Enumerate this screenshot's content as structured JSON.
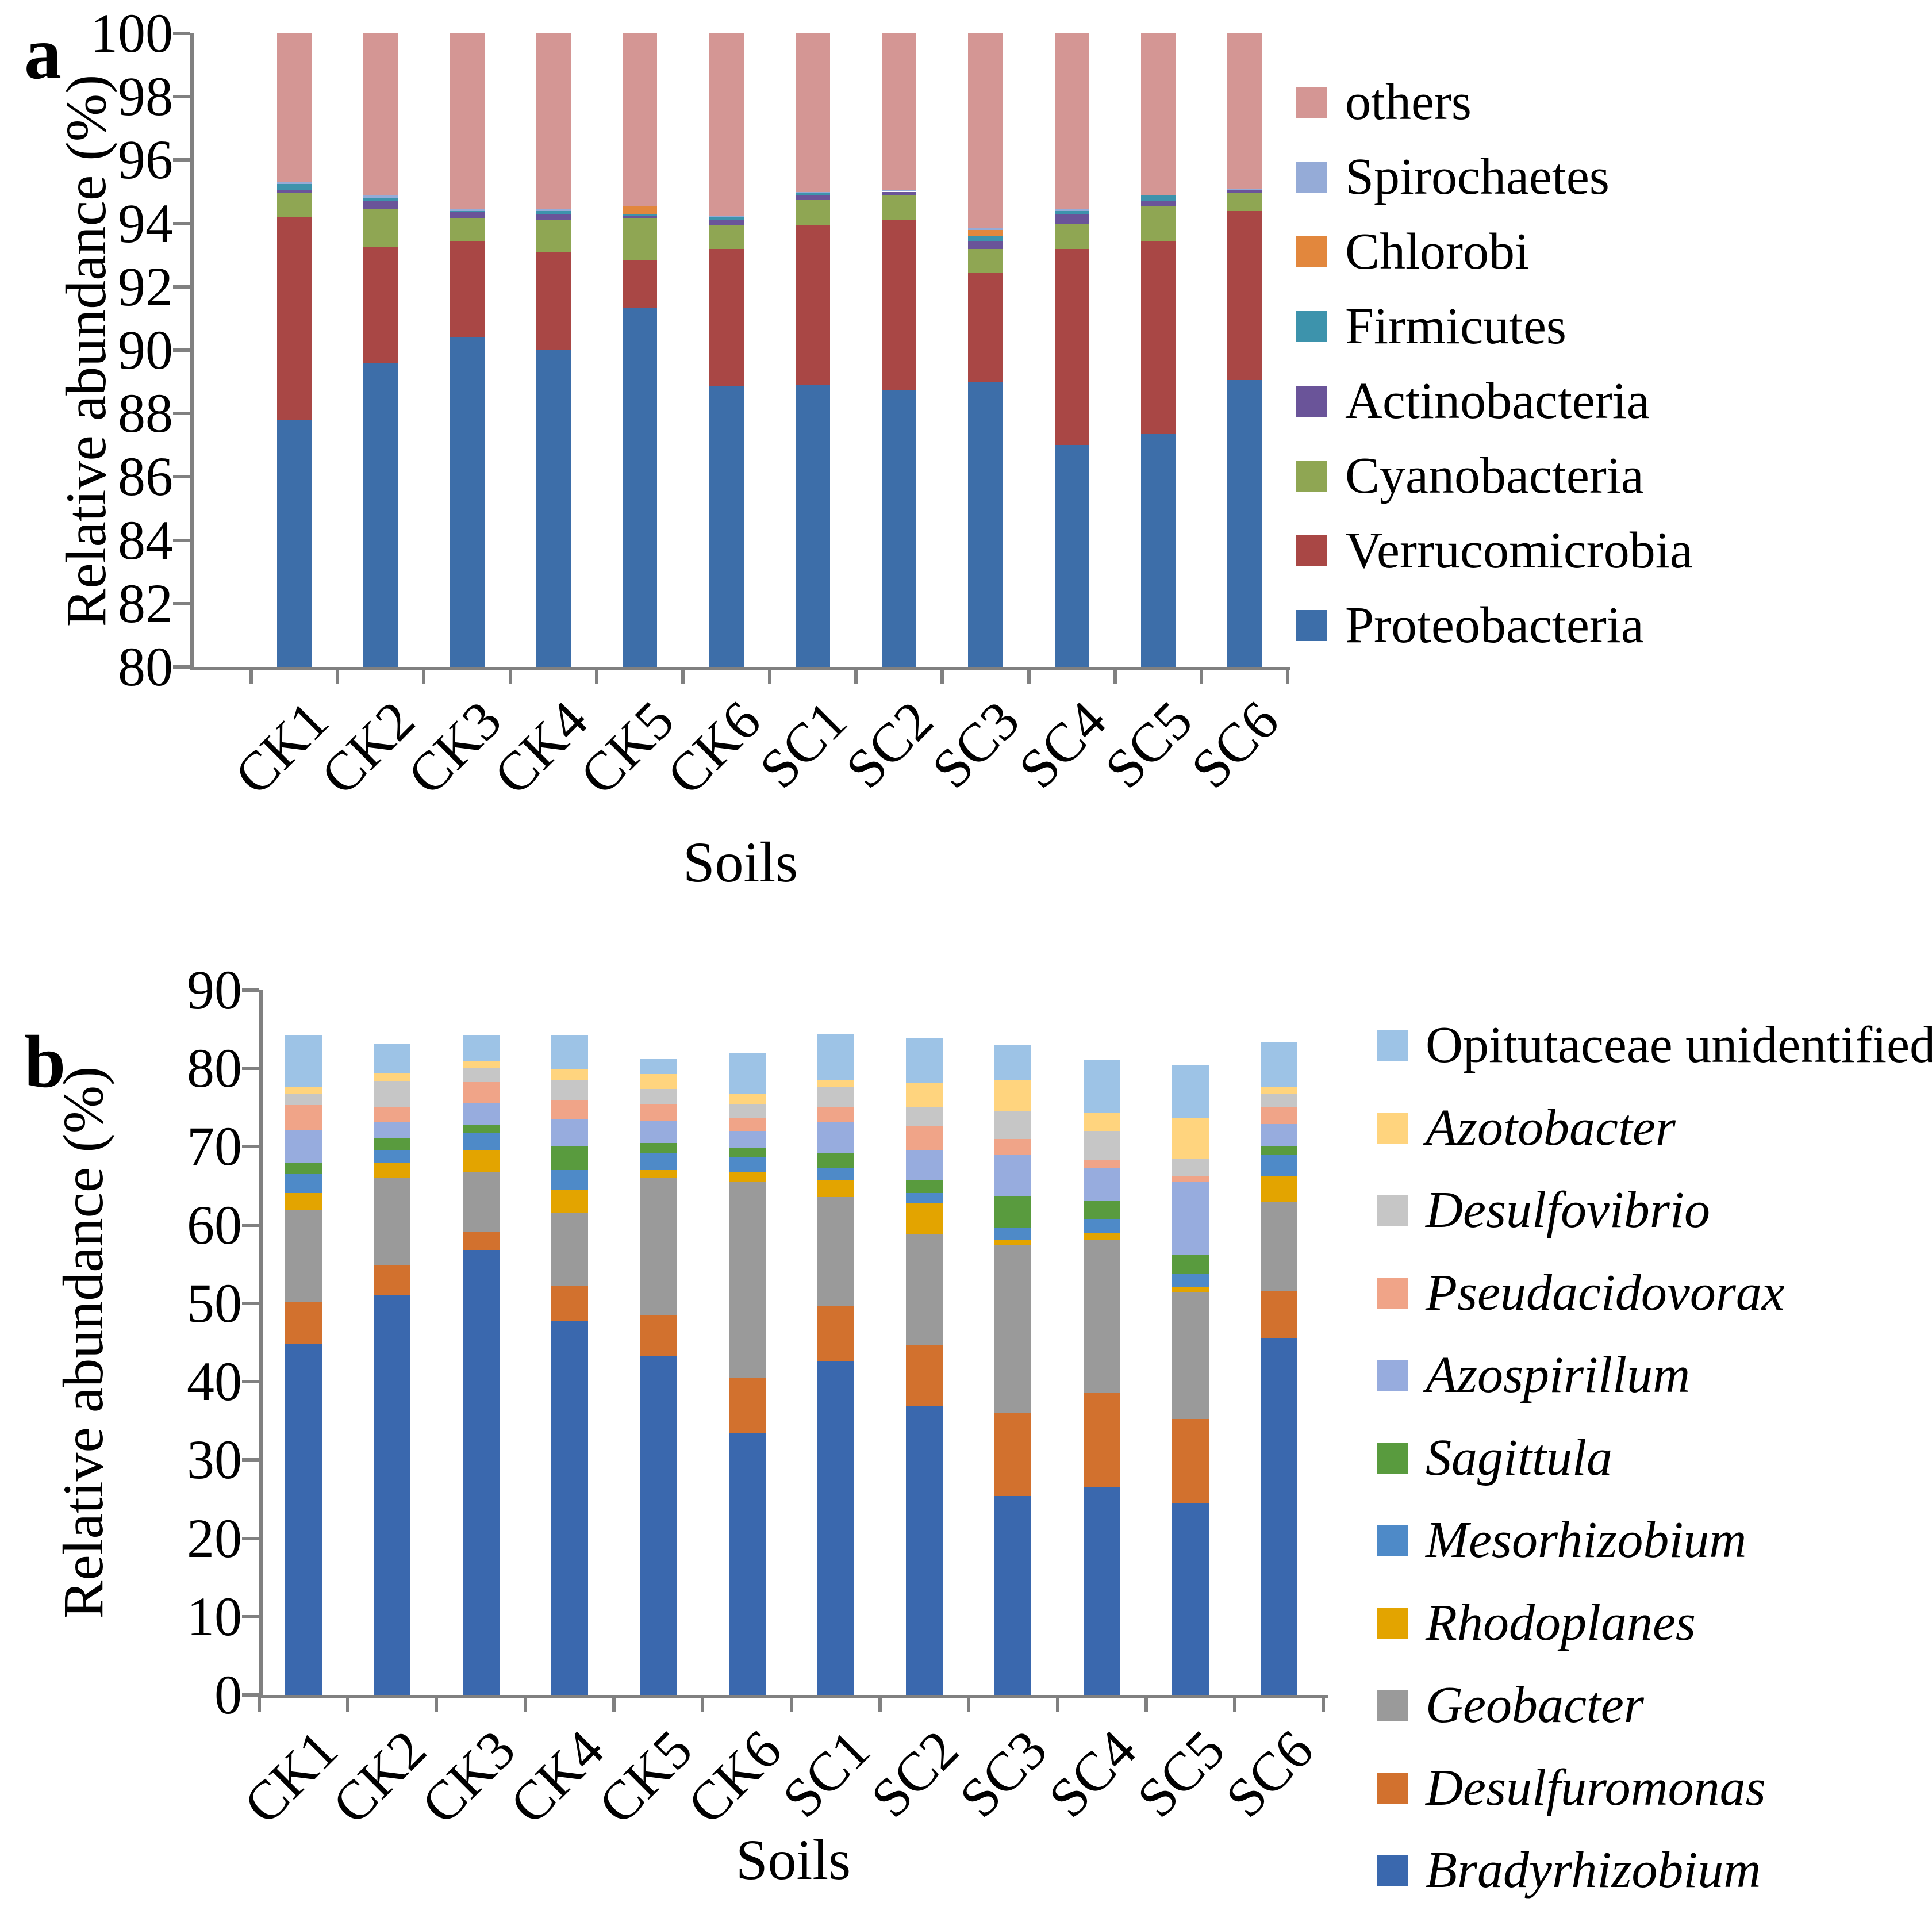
{
  "figure_labels": {
    "panel_a": "a",
    "panel_b": "b"
  },
  "chart_data": [
    {
      "panel": "a",
      "type": "bar",
      "stacked": true,
      "title": "",
      "xlabel": "Soils",
      "ylabel": "Relative abundance (%)",
      "ylim": [
        80,
        100
      ],
      "ytick_step": 2,
      "grid": false,
      "legend_position": "right",
      "categories": [
        "CK1",
        "CK2",
        "CK3",
        "CK4",
        "CK5",
        "CK6",
        "SC1",
        "SC2",
        "SC3",
        "SC4",
        "SC5",
        "SC6"
      ],
      "series": [
        {
          "name": "Proteobacteria",
          "color": "#3D6EA9",
          "italic": false,
          "values": [
            87.8,
            89.6,
            90.4,
            90.0,
            91.35,
            88.85,
            88.9,
            88.75,
            89.0,
            87.0,
            87.35,
            89.05
          ]
        },
        {
          "name": "Verrucomicrobia",
          "color": "#A94745",
          "italic": false,
          "values": [
            6.4,
            3.65,
            3.05,
            3.1,
            1.5,
            4.35,
            5.05,
            5.35,
            3.45,
            6.2,
            6.1,
            5.35
          ]
        },
        {
          "name": "Cyanobacteria",
          "color": "#8FA653",
          "italic": false,
          "values": [
            0.75,
            1.2,
            0.7,
            1.0,
            1.3,
            0.75,
            0.8,
            0.8,
            0.75,
            0.8,
            1.1,
            0.55
          ]
        },
        {
          "name": "Actinobacteria",
          "color": "#6A5499",
          "italic": false,
          "values": [
            0.1,
            0.25,
            0.2,
            0.2,
            0.1,
            0.15,
            0.15,
            0.1,
            0.25,
            0.3,
            0.15,
            0.1
          ]
        },
        {
          "name": "Firmicutes",
          "color": "#3D93AC",
          "italic": false,
          "values": [
            0.2,
            0.1,
            0.05,
            0.1,
            0.05,
            0.1,
            0.05,
            0.0,
            0.15,
            0.1,
            0.2,
            0.0
          ]
        },
        {
          "name": "Chlorobi",
          "color": "#E2873D",
          "italic": false,
          "values": [
            0.0,
            0.0,
            0.0,
            0.0,
            0.25,
            0.0,
            0.0,
            0.0,
            0.2,
            0.0,
            0.0,
            0.0
          ]
        },
        {
          "name": "Spirochaetes",
          "color": "#95ABD7",
          "italic": false,
          "values": [
            0.05,
            0.1,
            0.05,
            0.05,
            0.0,
            0.05,
            0.05,
            0.05,
            0.05,
            0.05,
            0.0,
            0.05
          ]
        },
        {
          "name": "others",
          "color": "#D49694",
          "italic": false,
          "values": [
            4.7,
            5.1,
            5.55,
            5.55,
            5.45,
            5.75,
            5.0,
            4.95,
            6.15,
            5.55,
            5.1,
            4.9
          ]
        }
      ]
    },
    {
      "panel": "b",
      "type": "bar",
      "stacked": true,
      "title": "",
      "xlabel": "Soils",
      "ylabel": "Relative abundance (%)",
      "ylim": [
        0,
        90
      ],
      "ytick_step": 10,
      "grid": false,
      "legend_position": "right",
      "categories": [
        "CK1",
        "CK2",
        "CK3",
        "CK4",
        "CK5",
        "CK6",
        "SC1",
        "SC2",
        "SC3",
        "SC4",
        "SC5",
        "SC6"
      ],
      "series": [
        {
          "name": "Bradyrhizobium",
          "color": "#3A68AE",
          "italic": true,
          "values": [
            44.8,
            51.0,
            56.8,
            47.7,
            43.3,
            33.5,
            42.6,
            36.9,
            25.4,
            26.5,
            24.5,
            45.5
          ]
        },
        {
          "name": "Desulfuromonas",
          "color": "#D2712E",
          "italic": true,
          "values": [
            5.4,
            3.9,
            2.3,
            4.6,
            5.2,
            7.0,
            7.1,
            7.7,
            10.6,
            12.1,
            10.7,
            6.1
          ]
        },
        {
          "name": "Geobacter",
          "color": "#9A9A9A",
          "italic": true,
          "values": [
            11.7,
            11.2,
            7.65,
            9.2,
            17.6,
            25.0,
            13.9,
            14.2,
            21.4,
            19.5,
            16.2,
            11.3
          ]
        },
        {
          "name": "Rhodoplanes",
          "color": "#E3A400",
          "italic": true,
          "values": [
            2.2,
            1.8,
            2.75,
            3.0,
            0.9,
            1.2,
            2.1,
            4.0,
            0.7,
            0.9,
            0.75,
            3.4
          ]
        },
        {
          "name": "Mesorhizobium",
          "color": "#4E8AC8",
          "italic": true,
          "values": [
            2.4,
            1.6,
            2.25,
            2.5,
            2.25,
            2.0,
            1.6,
            1.3,
            1.6,
            1.7,
            1.6,
            2.6
          ]
        },
        {
          "name": "Sagittula",
          "color": "#599B3E",
          "italic": true,
          "values": [
            1.4,
            1.6,
            1.0,
            3.1,
            1.25,
            1.1,
            1.95,
            1.7,
            4.05,
            2.4,
            2.5,
            1.1
          ]
        },
        {
          "name": "Azospirillum",
          "color": "#97ACDE",
          "italic": true,
          "values": [
            4.2,
            2.1,
            2.85,
            3.4,
            2.75,
            2.2,
            3.95,
            3.8,
            5.15,
            4.2,
            9.2,
            2.9
          ]
        },
        {
          "name": "Pseudacidovorax",
          "color": "#F0A488",
          "italic": true,
          "values": [
            3.2,
            1.85,
            2.65,
            2.5,
            2.25,
            1.6,
            1.9,
            3.0,
            2.1,
            1.0,
            0.75,
            2.2
          ]
        },
        {
          "name": "Desulfovibrio",
          "color": "#C6C6C6",
          "italic": true,
          "values": [
            1.4,
            3.3,
            1.85,
            2.5,
            1.9,
            1.9,
            2.6,
            2.4,
            3.5,
            3.7,
            2.2,
            1.6
          ]
        },
        {
          "name": "Azotobacter",
          "color": "#FFD47E",
          "italic": true,
          "values": [
            1.0,
            1.1,
            0.9,
            1.4,
            1.85,
            1.3,
            0.85,
            3.2,
            4.05,
            2.35,
            5.3,
            0.9
          ]
        },
        {
          "name": "Opitutaceae unidentified",
          "color": "#9DC3E6",
          "italic": false,
          "values": [
            6.6,
            3.7,
            3.2,
            4.3,
            1.95,
            5.2,
            5.85,
            5.6,
            4.45,
            6.8,
            6.7,
            5.8
          ]
        }
      ]
    }
  ]
}
